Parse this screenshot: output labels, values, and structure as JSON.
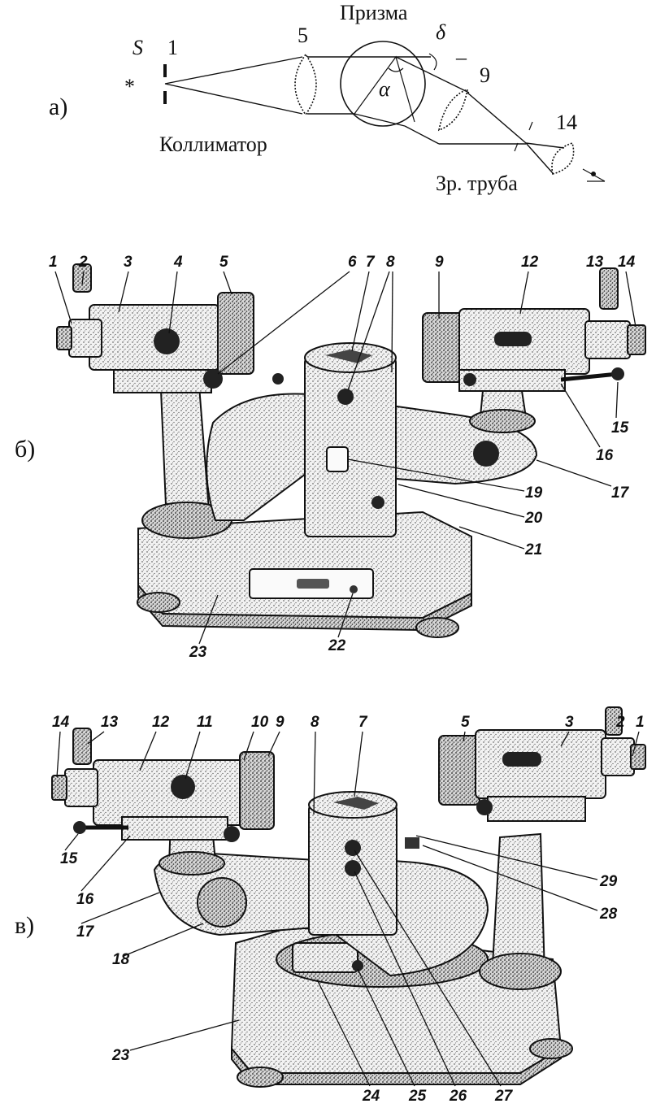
{
  "panels": {
    "a": {
      "label": "а)",
      "source": "S",
      "source_mark": "*",
      "slit_number": "1",
      "lens_number": "5",
      "prism_title": "Призма",
      "delta": "δ",
      "delta_dash": "–",
      "alpha": "α",
      "objective_number": "9",
      "eyepiece_number": "14",
      "collimator_label": "Коллиматор",
      "telescope_label": "Зр. труба"
    },
    "b": {
      "label": "б)",
      "callouts": [
        "1",
        "2",
        "3",
        "4",
        "5",
        "6",
        "7",
        "8",
        "9",
        "12",
        "13",
        "14",
        "15",
        "16",
        "17",
        "19",
        "20",
        "21",
        "22",
        "23"
      ]
    },
    "c": {
      "label": "в)",
      "callouts": [
        "14",
        "13",
        "12",
        "11",
        "10",
        "9",
        "8",
        "7",
        "5",
        "3",
        "2",
        "1",
        "15",
        "16",
        "17",
        "18",
        "23",
        "24",
        "25",
        "26",
        "27",
        "28",
        "29"
      ]
    }
  }
}
